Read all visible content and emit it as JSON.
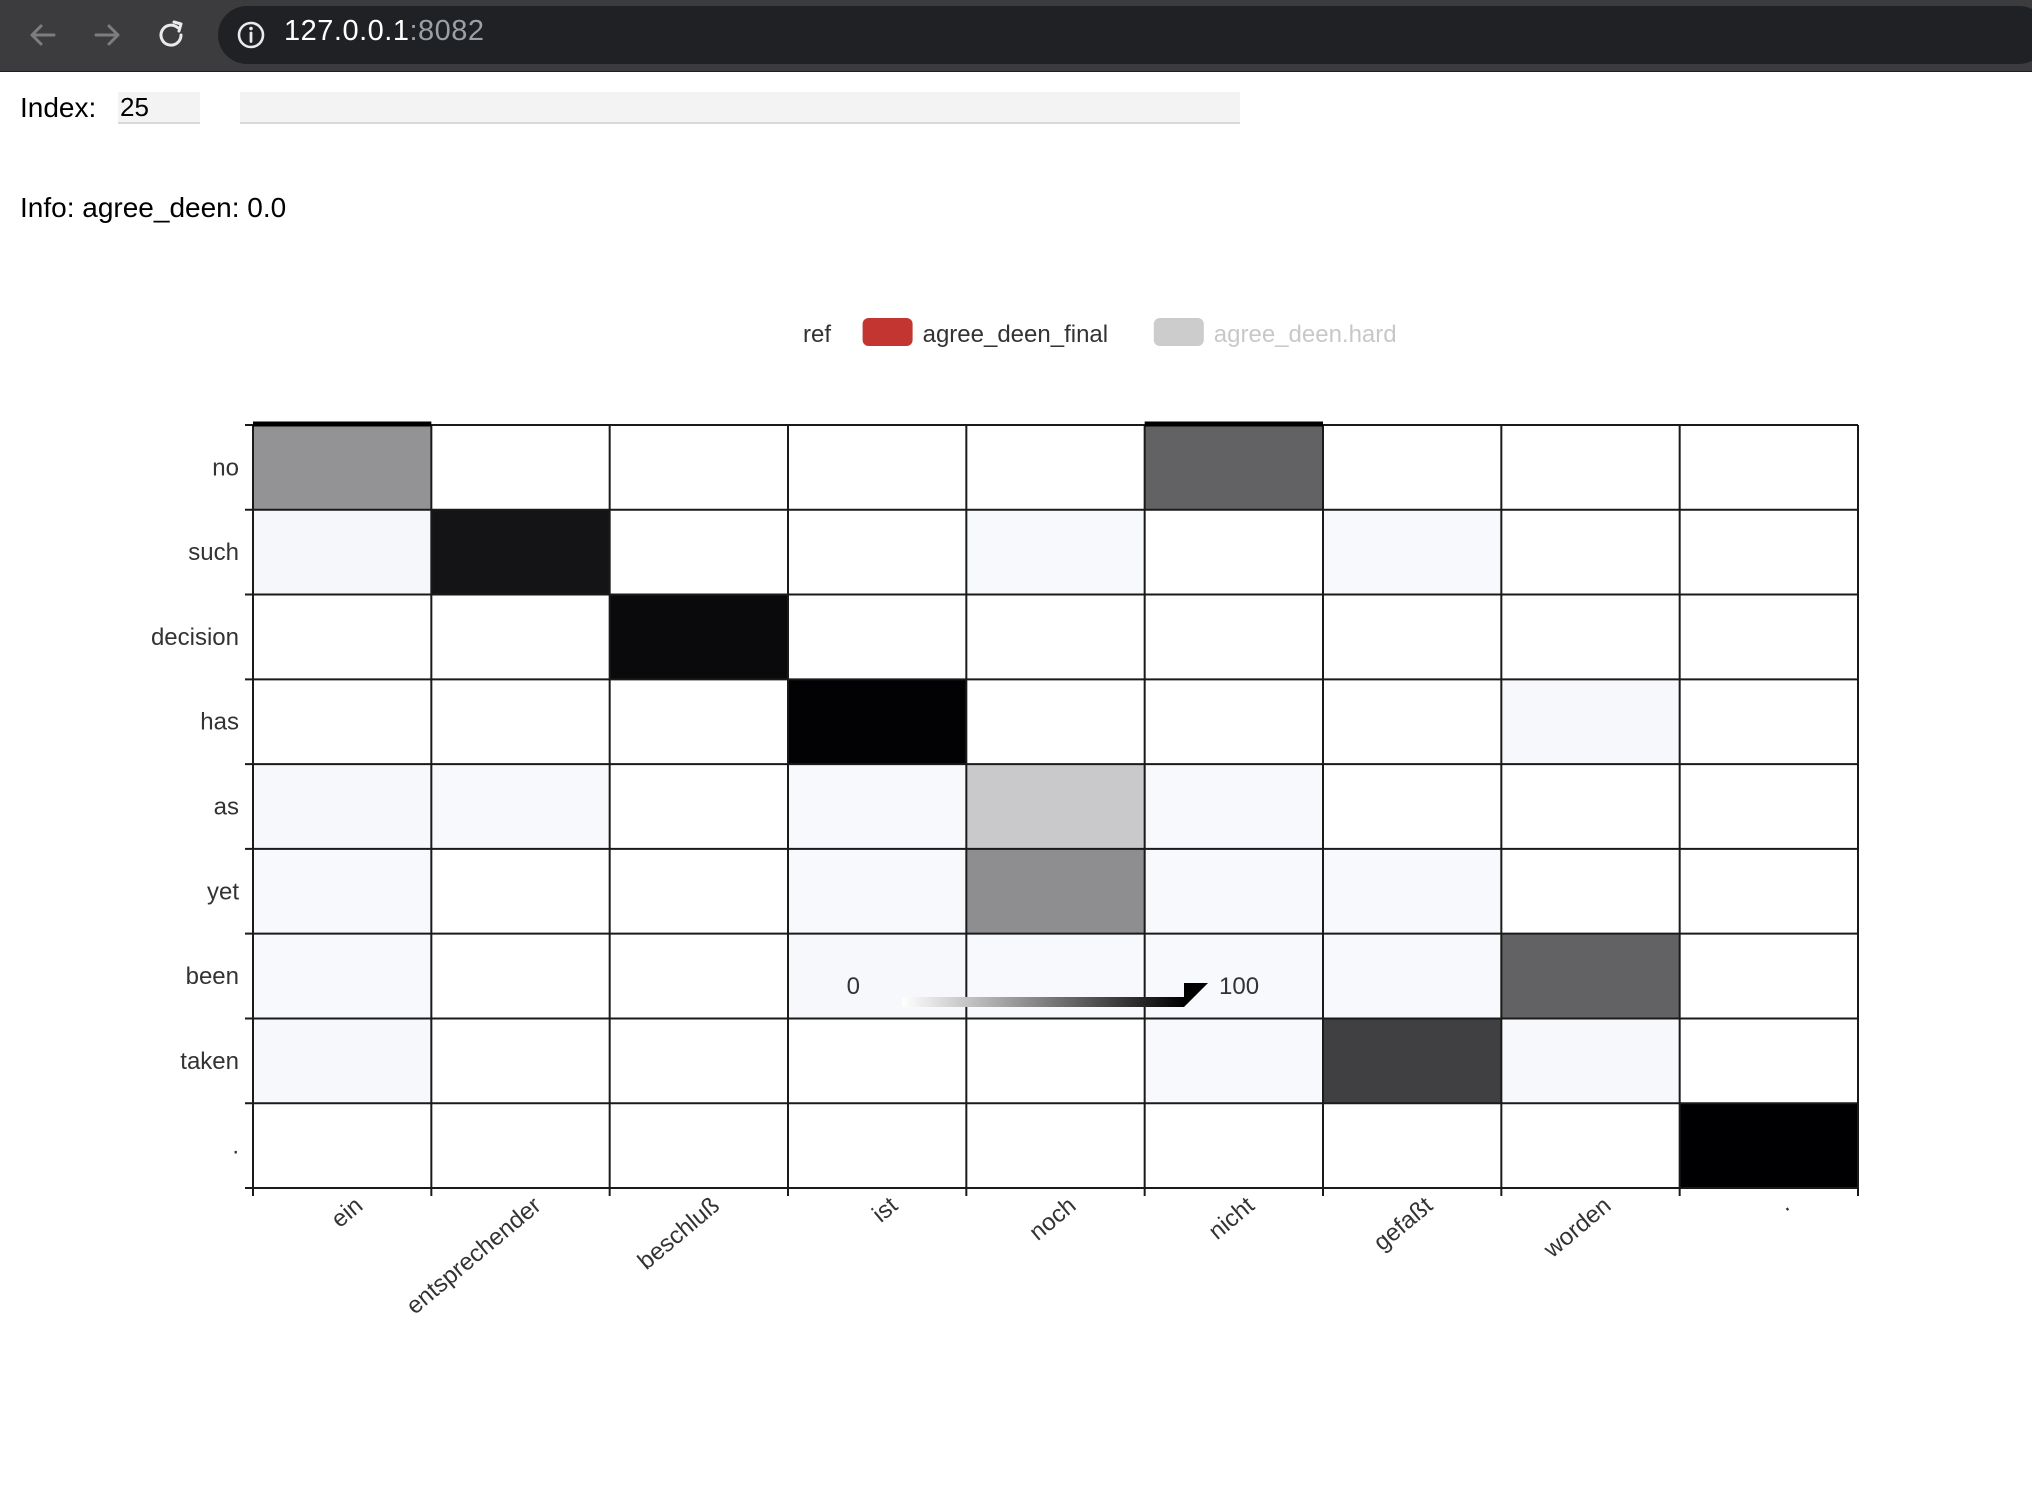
{
  "browser": {
    "url_host": "127.0.0.1",
    "url_port": ":8082"
  },
  "controls": {
    "index_label": "Index:",
    "index_value": "25",
    "text_value": ""
  },
  "info": {
    "label": "Info:",
    "text": "agree_deen: 0.0"
  },
  "legend": {
    "items": [
      {
        "label": "ref",
        "swatch": null,
        "active": true
      },
      {
        "label": "agree_deen_final",
        "swatch": "#c23531",
        "active": true
      },
      {
        "label": "agree_deen.hard",
        "swatch": "#cccccc",
        "active": false
      }
    ]
  },
  "visual_map": {
    "min_label": "0",
    "max_label": "100"
  },
  "chart_data": {
    "type": "heatmap",
    "x_categories": [
      "ein",
      "entsprechender",
      "beschluß",
      "ist",
      "noch",
      "nicht",
      "gefaßt",
      "worden",
      "."
    ],
    "y_categories": [
      "no",
      "such",
      "decision",
      "has",
      "as",
      "yet",
      "been",
      "taken",
      "."
    ],
    "range": [
      0,
      100
    ],
    "values": [
      [
        40,
        0,
        0,
        0,
        0,
        60,
        0,
        0,
        0
      ],
      [
        5,
        92,
        0,
        0,
        2,
        0,
        2,
        0,
        0
      ],
      [
        0,
        0,
        96,
        0,
        0,
        0,
        0,
        0,
        0
      ],
      [
        0,
        0,
        0,
        99,
        0,
        0,
        0,
        3,
        0
      ],
      [
        3,
        2,
        0,
        2,
        18,
        2,
        0,
        0,
        0
      ],
      [
        2,
        0,
        0,
        2,
        42,
        2,
        2,
        0,
        0
      ],
      [
        2,
        0,
        0,
        3,
        2,
        2,
        2,
        60,
        0
      ],
      [
        3,
        0,
        0,
        0,
        0,
        2,
        74,
        4,
        0
      ],
      [
        0,
        0,
        0,
        0,
        0,
        0,
        0,
        0,
        100
      ]
    ],
    "ref_marks": [
      [
        0,
        0
      ],
      [
        0,
        5
      ]
    ]
  }
}
